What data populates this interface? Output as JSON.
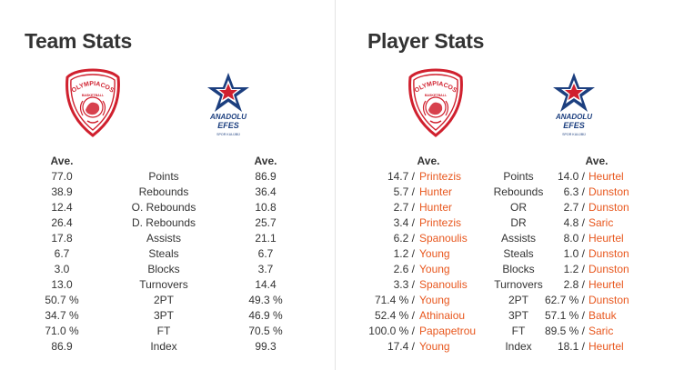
{
  "team_stats": {
    "title": "Team Stats",
    "home_header": "Ave.",
    "away_header": "Ave.",
    "rows": [
      {
        "label": "Points",
        "home": "77.0",
        "away": "86.9"
      },
      {
        "label": "Rebounds",
        "home": "38.9",
        "away": "36.4"
      },
      {
        "label": "O. Rebounds",
        "home": "12.4",
        "away": "10.8"
      },
      {
        "label": "D. Rebounds",
        "home": "26.4",
        "away": "25.7"
      },
      {
        "label": "Assists",
        "home": "17.8",
        "away": "21.1"
      },
      {
        "label": "Steals",
        "home": "6.7",
        "away": "6.7"
      },
      {
        "label": "Blocks",
        "home": "3.0",
        "away": "3.7"
      },
      {
        "label": "Turnovers",
        "home": "13.0",
        "away": "14.4"
      },
      {
        "label": "2PT",
        "home": "50.7 %",
        "away": "49.3 %"
      },
      {
        "label": "3PT",
        "home": "34.7 %",
        "away": "46.9 %"
      },
      {
        "label": "FT",
        "home": "71.0 %",
        "away": "70.5 %"
      },
      {
        "label": "Index",
        "home": "86.9",
        "away": "99.3"
      }
    ]
  },
  "player_stats": {
    "title": "Player Stats",
    "home_header": "Ave.",
    "away_header": "Ave.",
    "separator": "/",
    "rows": [
      {
        "label": "Points",
        "home_value": "14.7",
        "home_player": "Printezis",
        "away_value": "14.0",
        "away_player": "Heurtel"
      },
      {
        "label": "Rebounds",
        "home_value": "5.7",
        "home_player": "Hunter",
        "away_value": "6.3",
        "away_player": "Dunston"
      },
      {
        "label": "OR",
        "home_value": "2.7",
        "home_player": "Hunter",
        "away_value": "2.7",
        "away_player": "Dunston"
      },
      {
        "label": "DR",
        "home_value": "3.4",
        "home_player": "Printezis",
        "away_value": "4.8",
        "away_player": "Saric"
      },
      {
        "label": "Assists",
        "home_value": "6.2",
        "home_player": "Spanoulis",
        "away_value": "8.0",
        "away_player": "Heurtel"
      },
      {
        "label": "Steals",
        "home_value": "1.2",
        "home_player": "Young",
        "away_value": "1.0",
        "away_player": "Dunston"
      },
      {
        "label": "Blocks",
        "home_value": "2.6",
        "home_player": "Young",
        "away_value": "1.2",
        "away_player": "Dunston"
      },
      {
        "label": "Turnovers",
        "home_value": "3.3",
        "home_player": "Spanoulis",
        "away_value": "2.8",
        "away_player": "Heurtel"
      },
      {
        "label": "2PT",
        "home_value": "71.4 %",
        "home_player": "Young",
        "away_value": "62.7 %",
        "away_player": "Dunston"
      },
      {
        "label": "3PT",
        "home_value": "52.4 %",
        "home_player": "Athinaiou",
        "away_value": "57.1 %",
        "away_player": "Batuk"
      },
      {
        "label": "FT",
        "home_value": "100.0 %",
        "home_player": "Papapetrou",
        "away_value": "89.5 %",
        "away_player": "Saric"
      },
      {
        "label": "Index",
        "home_value": "17.4",
        "home_player": "Young",
        "away_value": "18.1",
        "away_player": "Heurtel"
      }
    ]
  },
  "logos": {
    "home": {
      "icon": "olympiacos-crest-icon",
      "text_top": "OLYMPIACOS",
      "text_sub": "BASKETBALL",
      "color": "#d0202e"
    },
    "away": {
      "icon": "anadolu-efes-star-icon",
      "text_line1": "ANADOLU",
      "text_line2": "EFES",
      "text_line3": "SPOR KULÜBÜ",
      "color": "#1c3f7f",
      "star_color": "#d0202e"
    }
  },
  "colors": {
    "accent": "#e8571e",
    "text": "#333333",
    "divider": "#e3e3e3"
  }
}
